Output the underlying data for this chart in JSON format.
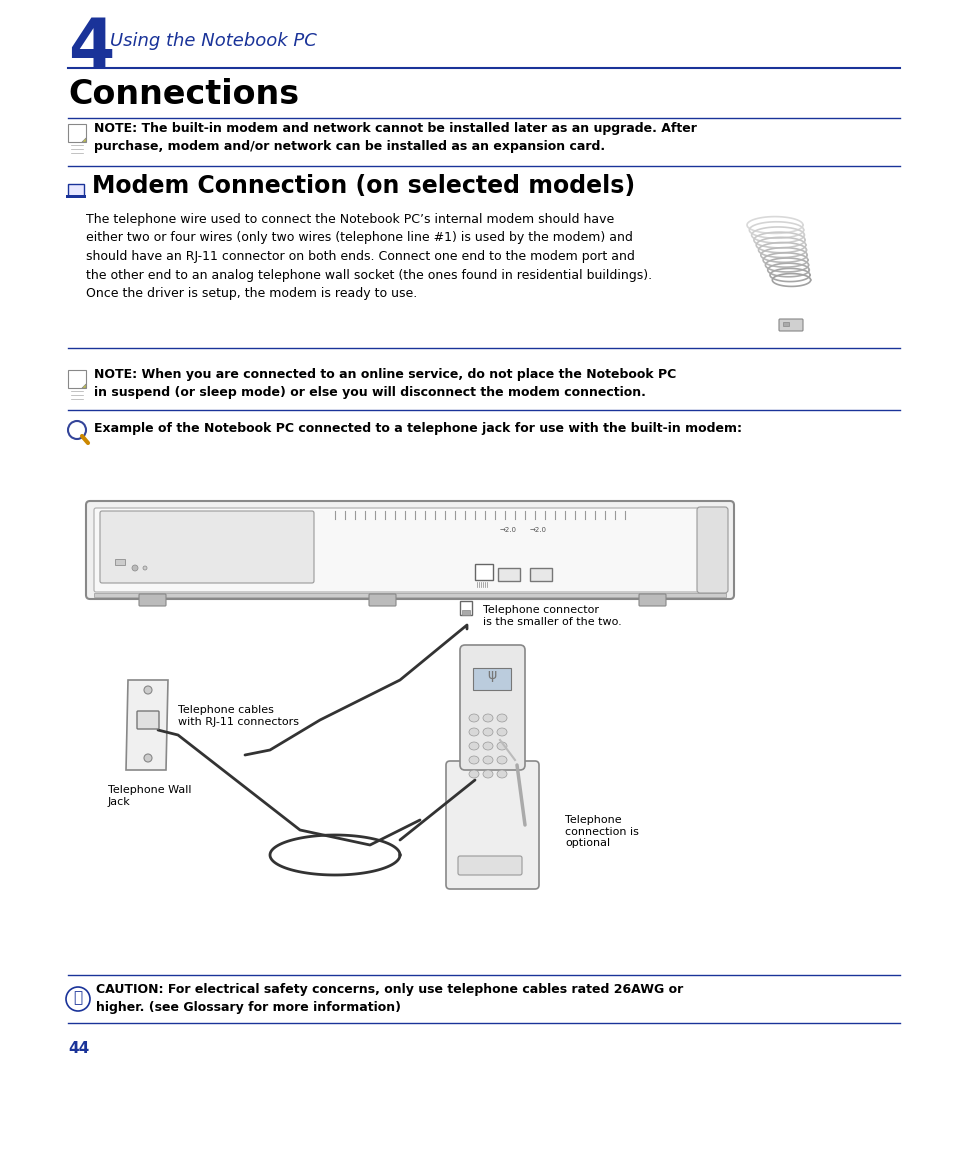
{
  "bg_color": "#ffffff",
  "chapter_num": "4",
  "chapter_num_size": 48,
  "chapter_title": "Using the Notebook PC",
  "chapter_title_size": 13,
  "chapter_color": "#1a3399",
  "section_title": "Connections",
  "section_title_size": 24,
  "section_title_color": "#000000",
  "subsection_title": "Modem Connection (on selected models)",
  "subsection_title_size": 17,
  "subsection_title_color": "#000000",
  "body_text_size": 9,
  "body_color": "#000000",
  "note_text_size": 9,
  "note_color": "#000000",
  "line_color": "#1a3399",
  "page_number": "44",
  "page_number_size": 11,
  "page_number_color": "#1a3399",
  "note1_text": "NOTE: The built-in modem and network cannot be installed later as an upgrade. After\npurchase, modem and/or network can be installed as an expansion card.",
  "body_paragraph": "The telephone wire used to connect the Notebook PC’s internal modem should have\neither two or four wires (only two wires (telephone line #1) is used by the modem) and\nshould have an RJ-11 connector on both ends. Connect one end to the modem port and\nthe other end to an analog telephone wall socket (the ones found in residential buildings).\nOnce the driver is setup, the modem is ready to use.",
  "note2_text": "NOTE: When you are connected to an online service, do not place the Notebook PC\nin suspend (or sleep mode) or else you will disconnect the modem connection.",
  "example_text": "Example of the Notebook PC connected to a telephone jack for use with the built-in modem:",
  "caution_text": "CAUTION: For electrical safety concerns, only use telephone cables rated 26AWG or\nhigher. (see Glossary for more information)",
  "label_tel_connector": "Telephone connector\nis the smaller of the two.",
  "label_tel_cables": "Telephone cables\nwith RJ-11 connectors",
  "label_tel_wall": "Telephone Wall\nJack",
  "label_tel_optional": "Telephone\nconnection is\noptional",
  "lmargin": 68,
  "rmargin": 900
}
